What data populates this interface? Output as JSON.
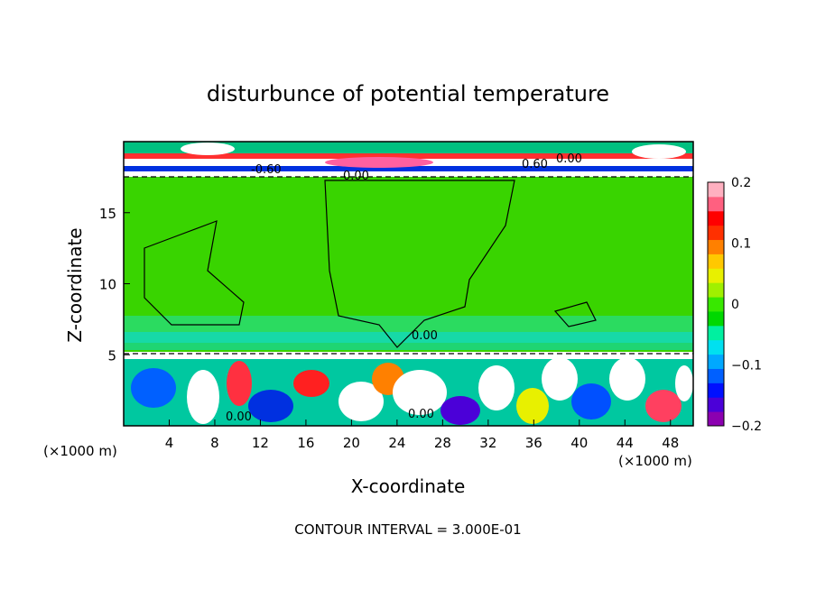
{
  "chart_data": {
    "type": "heatmap",
    "title": "disturbunce of potential temperature",
    "xlabel": "X-coordinate",
    "ylabel": "Z-coordinate",
    "x_unit_label_left": "(×1000 m)",
    "x_unit_label_right": "(×1000 m)",
    "xlim": [
      0,
      50
    ],
    "ylim": [
      0,
      20
    ],
    "x_ticks": [
      4,
      8,
      12,
      16,
      20,
      24,
      28,
      32,
      36,
      40,
      44,
      48
    ],
    "y_ticks": [
      5,
      10,
      15
    ],
    "colorbar": {
      "range": [
        -0.2,
        0.2
      ],
      "tick_values": [
        0.2,
        0.1,
        0,
        -0.1,
        -0.2
      ],
      "tick_labels": [
        "0.2",
        "0.1",
        "0",
        "−0.1",
        "−0.2"
      ],
      "colors": [
        "#8b00b0",
        "#4b00d8",
        "#0010ff",
        "#0060ff",
        "#00a8ff",
        "#00e0f0",
        "#00f0a0",
        "#00d800",
        "#38e800",
        "#a0f000",
        "#e8f000",
        "#ffc800",
        "#ff8000",
        "#ff3000",
        "#ff0000",
        "#ff6080",
        "#ffb0c0"
      ]
    },
    "contour_interval_text": "CONTOUR INTERVAL = 3.000E-01",
    "contour_labels": [
      "-0.60",
      "0.00",
      "0.60",
      "0.00",
      "0.00",
      "0.00",
      "0.00"
    ],
    "regions": [
      {
        "name": "upper-layer",
        "z_range": [
          17.3,
          20
        ],
        "pattern": "strong alternating stripes, white/red/blue"
      },
      {
        "name": "middle-layer",
        "z_range": [
          5.3,
          17.3
        ],
        "value": 0.0,
        "pattern": "mostly uniform green, cyan band near z=6"
      },
      {
        "name": "lower-layer",
        "z_range": [
          0,
          5.3
        ],
        "pattern": "turbulent mixed colors with white/red/blue patches"
      }
    ]
  }
}
